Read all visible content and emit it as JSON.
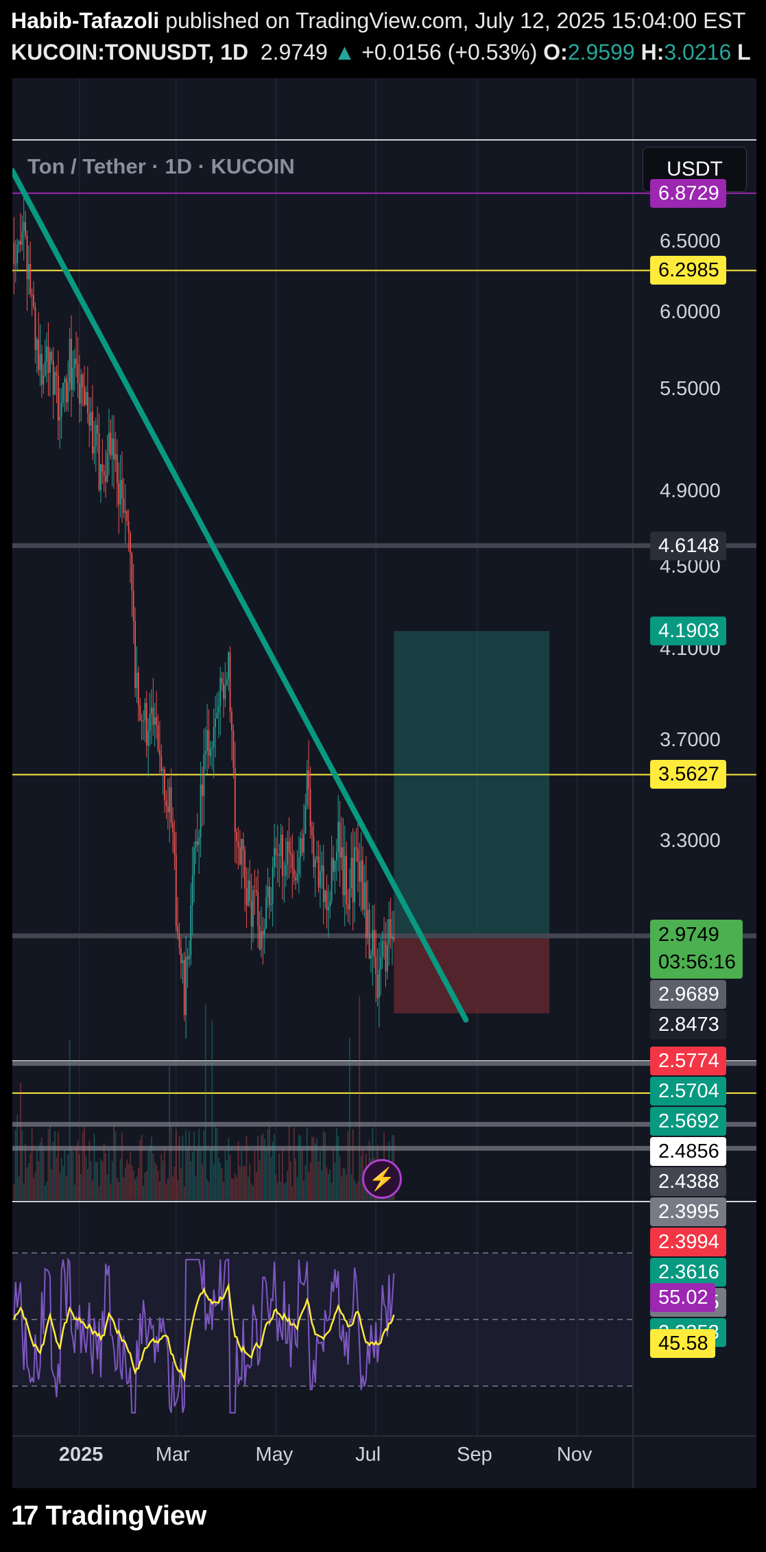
{
  "header": {
    "author": "Habib-Tafazoli",
    "published": "published on TradingView.com, July 12, 2025 15:04:00 EST",
    "symbol": "KUCOIN:TONUSDT, 1D",
    "last": "2.9749",
    "arrow": "▲",
    "change": "+0.0156 (+0.53%)",
    "o_label": "O:",
    "o_value": "2.9599",
    "h_label": "H:",
    "h_value": "3.0216",
    "cut": "L"
  },
  "symbol_label": "Ton / Tether · 1D · KUCOIN",
  "currency_button": "USDT",
  "icons": {
    "alert": "lightning-bolt-icon",
    "logo": "tradingview-logo-icon"
  },
  "footer": {
    "logo_mark": "17",
    "brand": "TradingView"
  },
  "price_tags": [
    {
      "text": "6.8729",
      "price": 6.8729,
      "bg": "#9c27b0",
      "fg": "#ffffff"
    },
    {
      "text": "6.2985",
      "price": 6.2985,
      "bg": "#ffeb3b",
      "fg": "#000000"
    },
    {
      "text": "4.6148",
      "price": 4.6148,
      "bg": "#2a2e39",
      "fg": "#ffffff"
    },
    {
      "text": "4.1903",
      "price": 4.1903,
      "bg": "#089981",
      "fg": "#ffffff"
    },
    {
      "text": "3.5627",
      "price": 3.5627,
      "bg": "#ffeb3b",
      "fg": "#000000"
    },
    {
      "text": "2.9689",
      "price": 2.9689,
      "bg": "#5d606b",
      "fg": "#ffffff"
    },
    {
      "text": "2.8473",
      "price": 2.8473,
      "bg": "#1e222d",
      "fg": "#ffffff"
    },
    {
      "text": "2.5774",
      "price": 2.5774,
      "bg": "#f23645",
      "fg": "#ffffff"
    },
    {
      "text": "2.5704",
      "price": 2.5704,
      "bg": "#089981",
      "fg": "#ffffff"
    },
    {
      "text": "2.5692",
      "price": 2.5692,
      "bg": "#089981",
      "fg": "#ffffff"
    },
    {
      "text": "2.4856",
      "price": 2.4856,
      "bg": "#ffffff",
      "fg": "#000000"
    },
    {
      "text": "2.4388",
      "price": 2.4388,
      "bg": "#434651",
      "fg": "#ffffff"
    },
    {
      "text": "2.3995",
      "price": 2.3995,
      "bg": "#787b86",
      "fg": "#ffffff"
    },
    {
      "text": "2.3994",
      "price": 2.3994,
      "bg": "#f23645",
      "fg": "#ffffff"
    },
    {
      "text": "2.3616",
      "price": 2.3616,
      "bg": "#089981",
      "fg": "#ffffff"
    },
    {
      "text": "2.3615",
      "price": 2.3615,
      "bg": "#787b86",
      "fg": "#ffffff"
    },
    {
      "text": "2.3353",
      "price": 2.3353,
      "bg": "#089981",
      "fg": "#ffffff"
    }
  ],
  "last_price_tag": {
    "price": "2.9749",
    "countdown": "03:56:16",
    "bg": "#4caf50"
  },
  "rsi_tags": [
    {
      "text": "55.02",
      "value": 55.02,
      "bg": "#9c27b0",
      "fg": "#ffffff"
    },
    {
      "text": "45.58",
      "value": 45.58,
      "bg": "#ffeb3b",
      "fg": "#000000"
    }
  ],
  "colors": {
    "background": "#131722",
    "grid": "#1f2330",
    "up": "#26a69a",
    "down": "#ef5350",
    "trendline": "#089981",
    "rsi": "#7e57c2",
    "rsi_ma": "#ffeb3b",
    "target_zone": "#1d5e5b",
    "stop_zone": "#6b2a32"
  },
  "chart_data": {
    "type": "candlestick",
    "title": "Ton / Tether · 1D · KUCOIN",
    "y_axis": {
      "scale": "log",
      "range": [
        2.3,
        7.3
      ],
      "ticks": [
        "6.5000",
        "6.0000",
        "5.5000",
        "4.9000",
        "4.5000",
        "4.1000",
        "3.7000",
        "3.3000"
      ]
    },
    "x_axis": {
      "range": [
        "2024-11-21",
        "2025-12-05"
      ],
      "ticks": [
        {
          "date": "2025-01-01",
          "label": "2025"
        },
        {
          "date": "2025-03-01",
          "label": "Mar"
        },
        {
          "date": "2025-05-01",
          "label": "May"
        },
        {
          "date": "2025-07-01",
          "label": "Jul"
        },
        {
          "date": "2025-09-01",
          "label": "Sep"
        },
        {
          "date": "2025-11-01",
          "label": "Nov"
        }
      ]
    },
    "price_path": [
      [
        "2024-11-22",
        6.5
      ],
      [
        "2024-11-26",
        6.6
      ],
      [
        "2024-12-02",
        6.2
      ],
      [
        "2024-12-08",
        5.6
      ],
      [
        "2024-12-14",
        5.8
      ],
      [
        "2024-12-20",
        5.3
      ],
      [
        "2024-12-26",
        5.7
      ],
      [
        "2025-01-01",
        5.5
      ],
      [
        "2025-01-08",
        5.3
      ],
      [
        "2025-01-14",
        5.0
      ],
      [
        "2025-01-20",
        5.2
      ],
      [
        "2025-01-26",
        4.9
      ],
      [
        "2025-02-01",
        4.6
      ],
      [
        "2025-02-04",
        3.9
      ],
      [
        "2025-02-10",
        3.8
      ],
      [
        "2025-02-18",
        3.7
      ],
      [
        "2025-02-24",
        3.5
      ],
      [
        "2025-03-02",
        3.0
      ],
      [
        "2025-03-06",
        2.75
      ],
      [
        "2025-03-12",
        3.2
      ],
      [
        "2025-03-18",
        3.6
      ],
      [
        "2025-03-26",
        3.8
      ],
      [
        "2025-04-02",
        4.1
      ],
      [
        "2025-04-06",
        3.4
      ],
      [
        "2025-04-14",
        3.1
      ],
      [
        "2025-04-22",
        3.0
      ],
      [
        "2025-04-30",
        3.2
      ],
      [
        "2025-05-08",
        3.3
      ],
      [
        "2025-05-14",
        3.2
      ],
      [
        "2025-05-20",
        3.5
      ],
      [
        "2025-05-26",
        3.2
      ],
      [
        "2025-06-02",
        3.1
      ],
      [
        "2025-06-08",
        3.3
      ],
      [
        "2025-06-14",
        3.1
      ],
      [
        "2025-06-20",
        3.25
      ],
      [
        "2025-06-26",
        3.0
      ],
      [
        "2025-07-02",
        2.85
      ],
      [
        "2025-07-06",
        2.9
      ],
      [
        "2025-07-12",
        2.9749
      ]
    ],
    "horizontal_lines": [
      {
        "price": 6.8729,
        "color": "#9c27b0"
      },
      {
        "price": 6.2985,
        "color": "#ffeb3b"
      },
      {
        "price": 4.6148,
        "color": "#434651"
      },
      {
        "price": 3.5627,
        "color": "#ffeb3b"
      },
      {
        "price": 2.9749,
        "color": "#d500f9",
        "style": "dotted"
      },
      {
        "price": 2.9689,
        "color": "#434651"
      },
      {
        "price": 2.5774,
        "color": "#ffffff"
      },
      {
        "price": 2.5704,
        "color": "#5d606b"
      },
      {
        "price": 2.4856,
        "color": "#ffeb3b"
      },
      {
        "price": 2.3995,
        "color": "#5d606b"
      },
      {
        "price": 2.3353,
        "color": "#5d606b"
      }
    ],
    "trendline": [
      [
        "2024-11-21",
        7.05
      ],
      [
        "2025-08-25",
        2.7
      ]
    ],
    "position_tool": {
      "start": "2025-07-12",
      "end": "2025-10-15",
      "entry": 2.9749,
      "target": 4.1903,
      "stop": 2.72
    },
    "rsi": {
      "ticks": [
        "80.00"
      ],
      "bands": [
        70,
        50,
        30
      ],
      "range": [
        15,
        85
      ],
      "last": 55.02,
      "ma_last": 45.58
    }
  }
}
